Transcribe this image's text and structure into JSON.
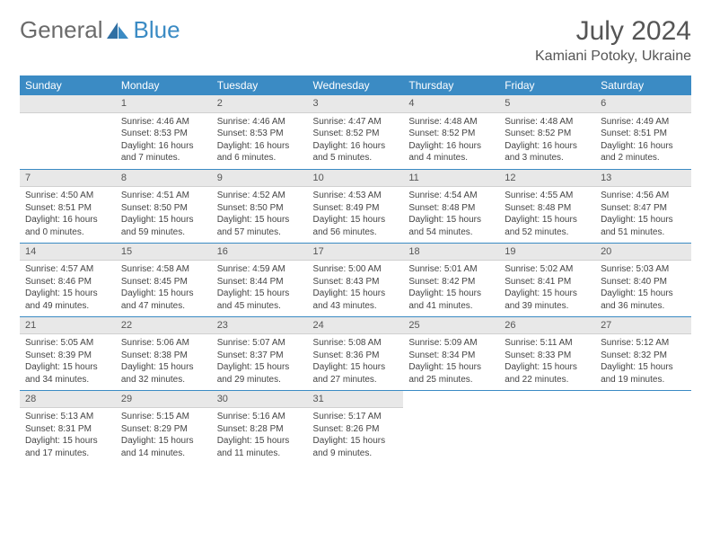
{
  "brand": {
    "part1": "General",
    "part2": "Blue"
  },
  "title": "July 2024",
  "location": "Kamiani Potoky, Ukraine",
  "colors": {
    "header_bg": "#3b8bc4",
    "header_text": "#ffffff",
    "daynum_bg": "#e8e8e8",
    "text": "#444444",
    "brand_gray": "#6b6b6b",
    "brand_blue": "#3b8bc4",
    "week_sep": "#3b8bc4"
  },
  "weekdays": [
    "Sunday",
    "Monday",
    "Tuesday",
    "Wednesday",
    "Thursday",
    "Friday",
    "Saturday"
  ],
  "weeks": [
    [
      null,
      {
        "n": "1",
        "sr": "4:46 AM",
        "ss": "8:53 PM",
        "dl": "16 hours and 7 minutes."
      },
      {
        "n": "2",
        "sr": "4:46 AM",
        "ss": "8:53 PM",
        "dl": "16 hours and 6 minutes."
      },
      {
        "n": "3",
        "sr": "4:47 AM",
        "ss": "8:52 PM",
        "dl": "16 hours and 5 minutes."
      },
      {
        "n": "4",
        "sr": "4:48 AM",
        "ss": "8:52 PM",
        "dl": "16 hours and 4 minutes."
      },
      {
        "n": "5",
        "sr": "4:48 AM",
        "ss": "8:52 PM",
        "dl": "16 hours and 3 minutes."
      },
      {
        "n": "6",
        "sr": "4:49 AM",
        "ss": "8:51 PM",
        "dl": "16 hours and 2 minutes."
      }
    ],
    [
      {
        "n": "7",
        "sr": "4:50 AM",
        "ss": "8:51 PM",
        "dl": "16 hours and 0 minutes."
      },
      {
        "n": "8",
        "sr": "4:51 AM",
        "ss": "8:50 PM",
        "dl": "15 hours and 59 minutes."
      },
      {
        "n": "9",
        "sr": "4:52 AM",
        "ss": "8:50 PM",
        "dl": "15 hours and 57 minutes."
      },
      {
        "n": "10",
        "sr": "4:53 AM",
        "ss": "8:49 PM",
        "dl": "15 hours and 56 minutes."
      },
      {
        "n": "11",
        "sr": "4:54 AM",
        "ss": "8:48 PM",
        "dl": "15 hours and 54 minutes."
      },
      {
        "n": "12",
        "sr": "4:55 AM",
        "ss": "8:48 PM",
        "dl": "15 hours and 52 minutes."
      },
      {
        "n": "13",
        "sr": "4:56 AM",
        "ss": "8:47 PM",
        "dl": "15 hours and 51 minutes."
      }
    ],
    [
      {
        "n": "14",
        "sr": "4:57 AM",
        "ss": "8:46 PM",
        "dl": "15 hours and 49 minutes."
      },
      {
        "n": "15",
        "sr": "4:58 AM",
        "ss": "8:45 PM",
        "dl": "15 hours and 47 minutes."
      },
      {
        "n": "16",
        "sr": "4:59 AM",
        "ss": "8:44 PM",
        "dl": "15 hours and 45 minutes."
      },
      {
        "n": "17",
        "sr": "5:00 AM",
        "ss": "8:43 PM",
        "dl": "15 hours and 43 minutes."
      },
      {
        "n": "18",
        "sr": "5:01 AM",
        "ss": "8:42 PM",
        "dl": "15 hours and 41 minutes."
      },
      {
        "n": "19",
        "sr": "5:02 AM",
        "ss": "8:41 PM",
        "dl": "15 hours and 39 minutes."
      },
      {
        "n": "20",
        "sr": "5:03 AM",
        "ss": "8:40 PM",
        "dl": "15 hours and 36 minutes."
      }
    ],
    [
      {
        "n": "21",
        "sr": "5:05 AM",
        "ss": "8:39 PM",
        "dl": "15 hours and 34 minutes."
      },
      {
        "n": "22",
        "sr": "5:06 AM",
        "ss": "8:38 PM",
        "dl": "15 hours and 32 minutes."
      },
      {
        "n": "23",
        "sr": "5:07 AM",
        "ss": "8:37 PM",
        "dl": "15 hours and 29 minutes."
      },
      {
        "n": "24",
        "sr": "5:08 AM",
        "ss": "8:36 PM",
        "dl": "15 hours and 27 minutes."
      },
      {
        "n": "25",
        "sr": "5:09 AM",
        "ss": "8:34 PM",
        "dl": "15 hours and 25 minutes."
      },
      {
        "n": "26",
        "sr": "5:11 AM",
        "ss": "8:33 PM",
        "dl": "15 hours and 22 minutes."
      },
      {
        "n": "27",
        "sr": "5:12 AM",
        "ss": "8:32 PM",
        "dl": "15 hours and 19 minutes."
      }
    ],
    [
      {
        "n": "28",
        "sr": "5:13 AM",
        "ss": "8:31 PM",
        "dl": "15 hours and 17 minutes."
      },
      {
        "n": "29",
        "sr": "5:15 AM",
        "ss": "8:29 PM",
        "dl": "15 hours and 14 minutes."
      },
      {
        "n": "30",
        "sr": "5:16 AM",
        "ss": "8:28 PM",
        "dl": "15 hours and 11 minutes."
      },
      {
        "n": "31",
        "sr": "5:17 AM",
        "ss": "8:26 PM",
        "dl": "15 hours and 9 minutes."
      },
      null,
      null,
      null
    ]
  ],
  "labels": {
    "sunrise": "Sunrise:",
    "sunset": "Sunset:",
    "daylight": "Daylight:"
  }
}
